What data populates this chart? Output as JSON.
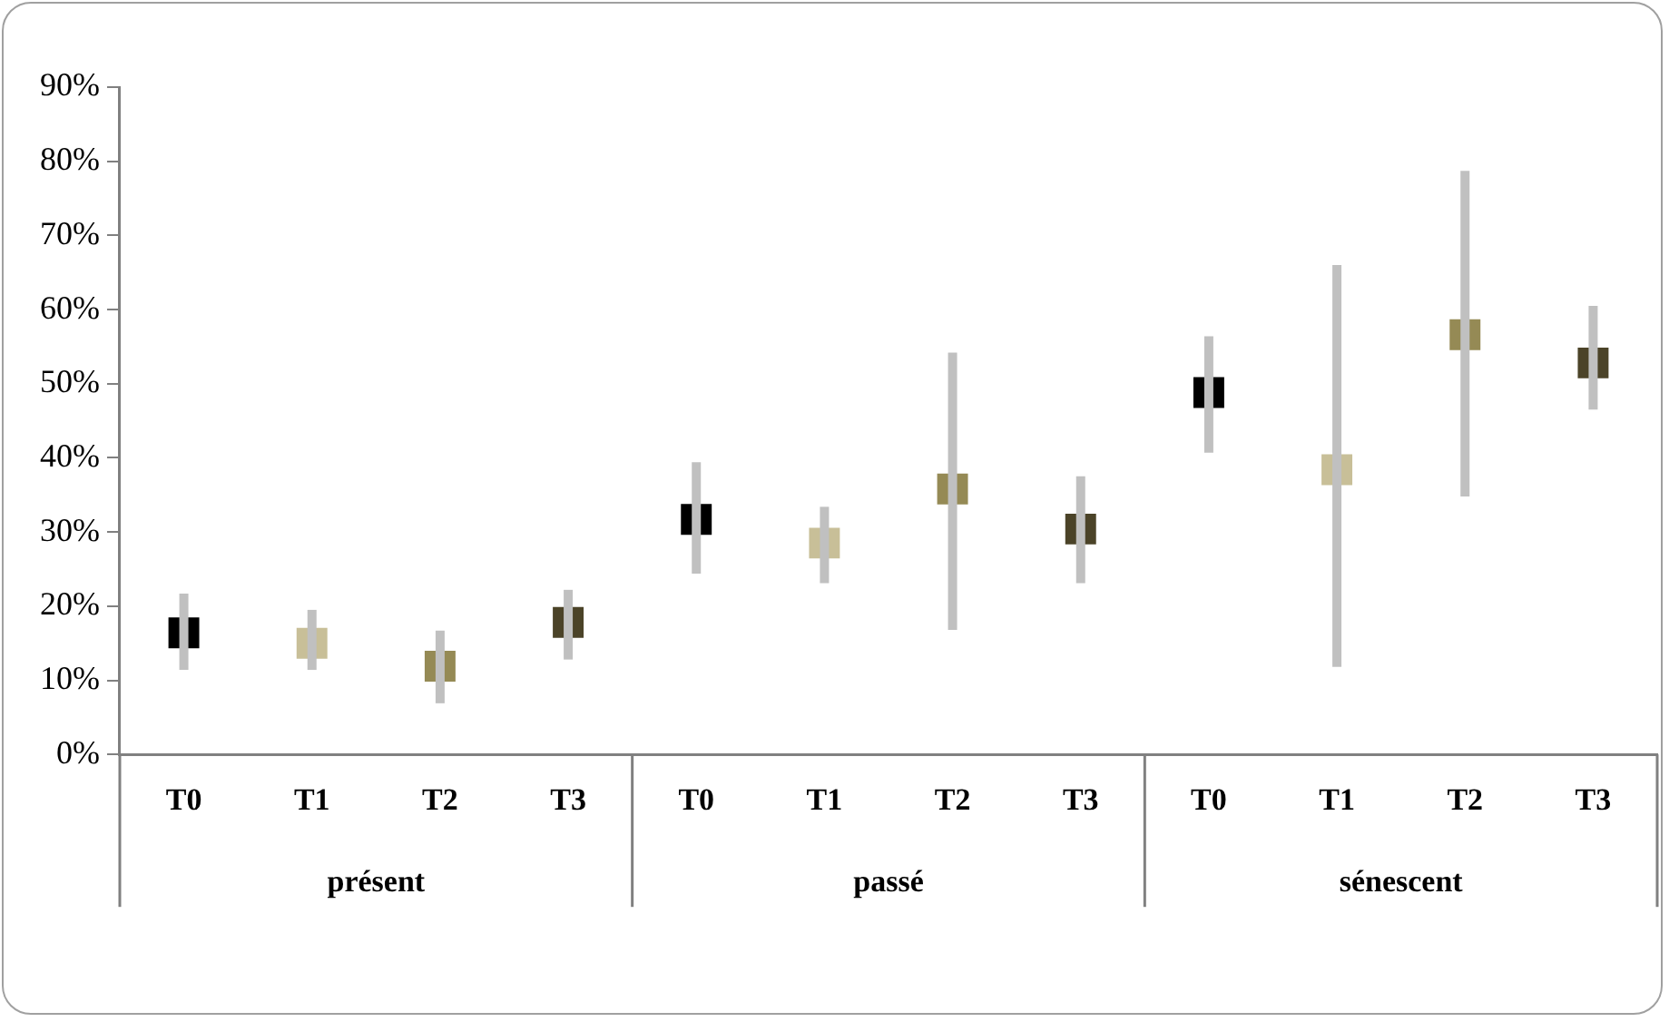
{
  "chart_data": {
    "type": "scatter",
    "marker": "square",
    "categories": [
      "T0",
      "T1",
      "T2",
      "T3",
      "T0",
      "T1",
      "T2",
      "T3",
      "T0",
      "T1",
      "T2",
      "T3"
    ],
    "values": [
      16.4,
      15.0,
      11.9,
      17.8,
      31.7,
      28.5,
      35.8,
      30.4,
      48.8,
      38.4,
      56.6,
      52.8
    ],
    "errors": [
      [
        11.4,
        21.7
      ],
      [
        11.4,
        19.5
      ],
      [
        6.9,
        16.7
      ],
      [
        12.8,
        22.2
      ],
      [
        24.4,
        39.4
      ],
      [
        23.1,
        33.4
      ],
      [
        16.8,
        54.2
      ],
      [
        23.1,
        37.5
      ],
      [
        40.7,
        56.4
      ],
      [
        11.8,
        66.0
      ],
      [
        34.8,
        78.7
      ],
      [
        46.5,
        60.5
      ]
    ],
    "colors": [
      "#000000",
      "#c8bf98",
      "#958a55",
      "#4b4328",
      "#000000",
      "#c8bf98",
      "#958a55",
      "#4b4328",
      "#000000",
      "#c8bf98",
      "#958a55",
      "#4b4328"
    ],
    "ylim": [
      0,
      90
    ],
    "yticks": [
      {
        "value": 0,
        "label": "0%"
      },
      {
        "value": 10,
        "label": "10%"
      },
      {
        "value": 20,
        "label": "20%"
      },
      {
        "value": 30,
        "label": "30%"
      },
      {
        "value": 40,
        "label": "40%"
      },
      {
        "value": 50,
        "label": "50%"
      },
      {
        "value": 60,
        "label": "60%"
      },
      {
        "value": 70,
        "label": "70%"
      },
      {
        "value": 80,
        "label": "80%"
      },
      {
        "value": 90,
        "label": "90%"
      }
    ],
    "annotations": [
      "présent",
      "passé",
      "sénescent"
    ]
  }
}
